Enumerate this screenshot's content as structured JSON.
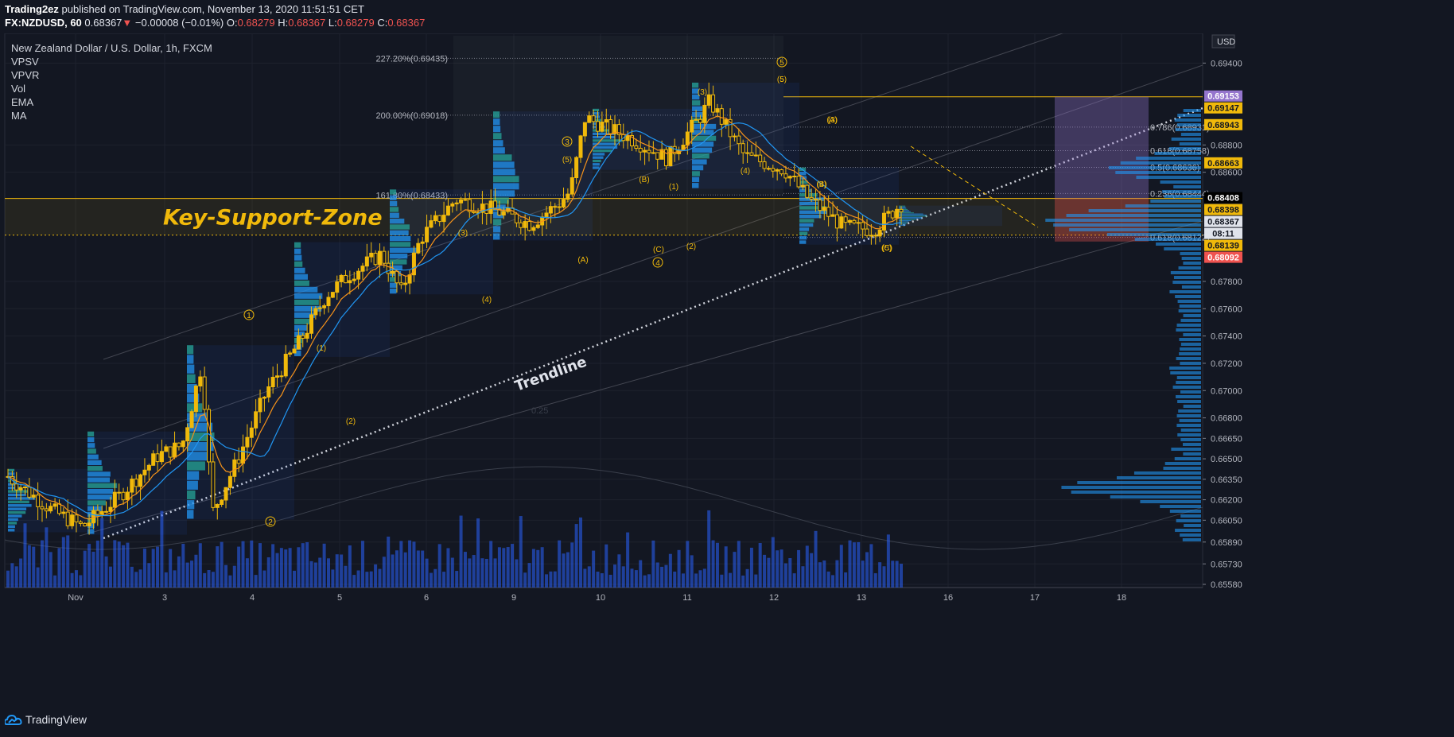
{
  "header": {
    "publisher": "Trading2ez",
    "published_text": "published on TradingView.com, November 13, 2020 11:51:51 CET",
    "symbol": "FX:NZDUSD, 60",
    "last": "0.68367",
    "change": "−0.00008 (−0.01%)",
    "o_label": "O:",
    "o_value": "0.68279",
    "h_label": "H:",
    "h_value": "0.68367",
    "l_label": "L:",
    "l_value": "0.68279",
    "c_label": "C:",
    "c_value": "0.68367"
  },
  "legend": {
    "title": "New Zealand Dollar / U.S. Dollar, 1h, FXCM",
    "indicators": [
      "VPSV",
      "VPVR",
      "Vol",
      "EMA",
      "MA"
    ]
  },
  "footer": {
    "brand": "TradingView"
  },
  "chart_data": {
    "type": "candlestick",
    "currency": "USD",
    "ylim": [
      0.6558,
      0.696
    ],
    "y_ticks": [
      "0.69400",
      "0.68800",
      "0.68600",
      "0.67800",
      "0.67600",
      "0.67400",
      "0.67200",
      "0.67000",
      "0.66800",
      "0.66650",
      "0.66500",
      "0.66350",
      "0.66200",
      "0.66050",
      "0.65890",
      "0.65730",
      "0.65580"
    ],
    "x_ticks": [
      "Nov",
      "3",
      "4",
      "5",
      "6",
      "9",
      "10",
      "11",
      "12",
      "13",
      "16",
      "17",
      "18"
    ],
    "price_badges": [
      {
        "label": "0.69153",
        "bg": "#9575cd",
        "fg": "#ffffff"
      },
      {
        "label": "0.69147",
        "bg": "#f0b90b",
        "fg": "#131722"
      },
      {
        "label": "0.68943",
        "bg": "#f0b90b",
        "fg": "#131722"
      },
      {
        "label": "0.68663",
        "bg": "#f0b90b",
        "fg": "#131722"
      },
      {
        "label": "0.68408",
        "bg": "#000000",
        "fg": "#ffffff"
      },
      {
        "label": "0.68398",
        "bg": "#f0b90b",
        "fg": "#131722"
      },
      {
        "label": "0.68367",
        "bg": "#e0e3eb",
        "fg": "#131722"
      },
      {
        "label": "08:11",
        "bg": "#e0e3eb",
        "fg": "#131722"
      },
      {
        "label": "0.68139",
        "bg": "#f0b90b",
        "fg": "#131722"
      },
      {
        "label": "0.68092",
        "bg": "#ef5350",
        "fg": "#ffffff"
      }
    ],
    "fib_levels": [
      {
        "label": "227.20%(0.69435)"
      },
      {
        "label": "200.00%(0.69018)"
      },
      {
        "label": "161.80%(0.68433)"
      }
    ],
    "retracement_levels": [
      {
        "label": "0.786(0.68931)"
      },
      {
        "label": "0.618(0.68758)"
      },
      {
        "label": "0.5(0.68636)"
      },
      {
        "label": "0.236(0.68444)"
      },
      {
        "label": "0.618(0.68122)"
      }
    ],
    "annotations": {
      "zone": "Key-Support-Zone",
      "trendline": "Trendline",
      "faint": "0.25"
    },
    "wave_labels": [
      "1",
      "2",
      "3",
      "5",
      "4",
      "5",
      "(1)",
      "(2)",
      "(3)",
      "(4)",
      "(5)",
      "(3)",
      "(4)",
      "(5)",
      "(A)",
      "(B)",
      "(C)",
      "(1)",
      "(2)",
      "(3)",
      "(4)",
      "(5)",
      "(A)",
      "(B)",
      "(C)"
    ],
    "colors": {
      "background": "#131722",
      "candle": "#f0b90b",
      "ema": "#f7931a",
      "ma": "#2196f3",
      "volume": "#2962ff",
      "zone_line": "#f0b90b",
      "profile": "#2196f3"
    }
  }
}
